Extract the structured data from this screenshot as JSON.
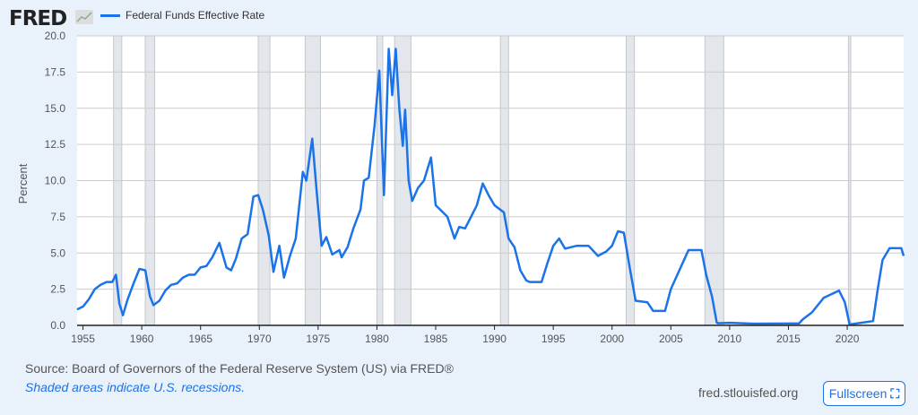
{
  "header": {
    "logo": "FRED",
    "legend_label": "Federal Funds Effective Rate"
  },
  "footer": {
    "source": "Source: Board of Governors of the Federal Reserve System (US) via FRED®",
    "recessions_note": "Shaded areas indicate U.S. recessions.",
    "site": "fred.stlouisfed.org",
    "fullscreen_label": "Fullscreen"
  },
  "colors": {
    "line": "#1a73e8",
    "recession": "#e3e6ea",
    "grid": "#cccccc",
    "background": "#e9f1fa"
  },
  "chart_data": {
    "type": "line",
    "title": "Federal Funds Effective Rate",
    "ylabel": "Percent",
    "xlabel": "",
    "xlim": [
      1954.5,
      2024.8
    ],
    "ylim": [
      0,
      20
    ],
    "yticks": [
      "0.0",
      "2.5",
      "5.0",
      "7.5",
      "10.0",
      "12.5",
      "15.0",
      "17.5",
      "20.0"
    ],
    "xticks": [
      "1955",
      "1960",
      "1965",
      "1970",
      "1975",
      "1980",
      "1985",
      "1990",
      "1995",
      "2000",
      "2005",
      "2010",
      "2015",
      "2020"
    ],
    "grid": true,
    "recessions": [
      [
        1957.6,
        1958.3
      ],
      [
        1960.3,
        1961.1
      ],
      [
        1969.9,
        1970.9
      ],
      [
        1973.9,
        1975.2
      ],
      [
        1980.0,
        1980.5
      ],
      [
        1981.5,
        1982.9
      ],
      [
        1990.5,
        1991.2
      ],
      [
        2001.2,
        2001.9
      ],
      [
        2007.9,
        2009.5
      ],
      [
        2020.1,
        2020.3
      ]
    ],
    "series": [
      {
        "name": "Federal Funds Effective Rate",
        "points": [
          [
            1954.5,
            1.1
          ],
          [
            1955,
            1.3
          ],
          [
            1955.5,
            1.8
          ],
          [
            1956,
            2.5
          ],
          [
            1956.5,
            2.8
          ],
          [
            1957,
            3.0
          ],
          [
            1957.5,
            3.0
          ],
          [
            1957.8,
            3.5
          ],
          [
            1958.1,
            1.5
          ],
          [
            1958.4,
            0.7
          ],
          [
            1958.8,
            1.8
          ],
          [
            1959.3,
            2.9
          ],
          [
            1959.8,
            3.9
          ],
          [
            1960.3,
            3.8
          ],
          [
            1960.7,
            2.0
          ],
          [
            1961,
            1.4
          ],
          [
            1961.5,
            1.7
          ],
          [
            1962,
            2.4
          ],
          [
            1962.5,
            2.8
          ],
          [
            1963,
            2.9
          ],
          [
            1963.5,
            3.3
          ],
          [
            1964,
            3.5
          ],
          [
            1964.5,
            3.5
          ],
          [
            1965,
            4.0
          ],
          [
            1965.5,
            4.1
          ],
          [
            1966,
            4.7
          ],
          [
            1966.6,
            5.7
          ],
          [
            1967.2,
            4.0
          ],
          [
            1967.6,
            3.8
          ],
          [
            1968,
            4.6
          ],
          [
            1968.5,
            6.0
          ],
          [
            1969,
            6.3
          ],
          [
            1969.5,
            8.9
          ],
          [
            1969.9,
            9.0
          ],
          [
            1970.3,
            8.0
          ],
          [
            1970.8,
            6.2
          ],
          [
            1971.2,
            3.7
          ],
          [
            1971.7,
            5.5
          ],
          [
            1972.1,
            3.3
          ],
          [
            1972.6,
            4.8
          ],
          [
            1973.1,
            6.0
          ],
          [
            1973.7,
            10.6
          ],
          [
            1974,
            10.0
          ],
          [
            1974.5,
            12.9
          ],
          [
            1974.9,
            9.0
          ],
          [
            1975.3,
            5.5
          ],
          [
            1975.7,
            6.1
          ],
          [
            1976.2,
            4.9
          ],
          [
            1976.8,
            5.2
          ],
          [
            1977,
            4.7
          ],
          [
            1977.5,
            5.4
          ],
          [
            1978,
            6.7
          ],
          [
            1978.6,
            8.0
          ],
          [
            1978.9,
            10.0
          ],
          [
            1979.3,
            10.2
          ],
          [
            1979.8,
            13.8
          ],
          [
            1980.2,
            17.6
          ],
          [
            1980.6,
            9.0
          ],
          [
            1981,
            19.1
          ],
          [
            1981.3,
            15.9
          ],
          [
            1981.6,
            19.1
          ],
          [
            1981.9,
            15.0
          ],
          [
            1982.2,
            12.4
          ],
          [
            1982.4,
            14.9
          ],
          [
            1982.7,
            10.0
          ],
          [
            1983,
            8.6
          ],
          [
            1983.5,
            9.5
          ],
          [
            1984,
            10.0
          ],
          [
            1984.6,
            11.6
          ],
          [
            1985,
            8.3
          ],
          [
            1985.5,
            7.9
          ],
          [
            1986,
            7.5
          ],
          [
            1986.6,
            6.0
          ],
          [
            1987,
            6.8
          ],
          [
            1987.5,
            6.7
          ],
          [
            1988,
            7.5
          ],
          [
            1988.5,
            8.3
          ],
          [
            1989,
            9.8
          ],
          [
            1989.5,
            9.0
          ],
          [
            1990,
            8.3
          ],
          [
            1990.8,
            7.8
          ],
          [
            1991.2,
            6.0
          ],
          [
            1991.7,
            5.4
          ],
          [
            1992.2,
            3.8
          ],
          [
            1992.7,
            3.1
          ],
          [
            1993,
            3.0
          ],
          [
            1994,
            3.0
          ],
          [
            1994.5,
            4.3
          ],
          [
            1995,
            5.5
          ],
          [
            1995.5,
            6.0
          ],
          [
            1996,
            5.3
          ],
          [
            1997,
            5.5
          ],
          [
            1998,
            5.5
          ],
          [
            1998.8,
            4.8
          ],
          [
            1999.5,
            5.1
          ],
          [
            2000,
            5.5
          ],
          [
            2000.5,
            6.5
          ],
          [
            2001,
            6.4
          ],
          [
            2001.5,
            4.0
          ],
          [
            2002,
            1.7
          ],
          [
            2003,
            1.6
          ],
          [
            2003.5,
            1.0
          ],
          [
            2004.5,
            1.0
          ],
          [
            2005,
            2.5
          ],
          [
            2006.5,
            5.2
          ],
          [
            2007.6,
            5.2
          ],
          [
            2008,
            3.5
          ],
          [
            2008.5,
            2.0
          ],
          [
            2008.9,
            0.2
          ],
          [
            2009,
            0.15
          ],
          [
            2010,
            0.18
          ],
          [
            2012,
            0.12
          ],
          [
            2015.9,
            0.13
          ],
          [
            2016.2,
            0.4
          ],
          [
            2017,
            0.9
          ],
          [
            2018,
            1.9
          ],
          [
            2019.3,
            2.4
          ],
          [
            2019.8,
            1.6
          ],
          [
            2020.2,
            0.06
          ],
          [
            2022.2,
            0.3
          ],
          [
            2022.6,
            2.5
          ],
          [
            2023,
            4.5
          ],
          [
            2023.6,
            5.33
          ],
          [
            2024.6,
            5.33
          ],
          [
            2024.8,
            4.8
          ]
        ]
      }
    ]
  }
}
